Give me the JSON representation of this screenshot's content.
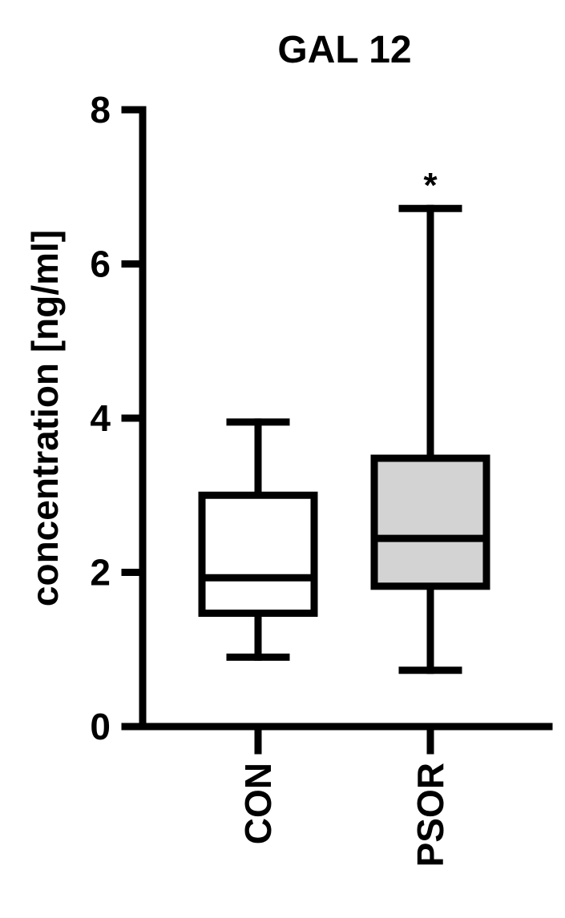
{
  "chart_data": {
    "type": "box",
    "title": "GAL 12",
    "ylabel": "concentration [ng/ml]",
    "xlabel": "",
    "ylim": [
      0,
      8
    ],
    "yticks": [
      0,
      2,
      4,
      6,
      8
    ],
    "categories": [
      "CON",
      "PSOR"
    ],
    "boxes": [
      {
        "category": "CON",
        "min": 0.9,
        "q1": 1.47,
        "median": 1.93,
        "q3": 3.0,
        "max": 3.95,
        "fill": "#ffffff",
        "annotation": ""
      },
      {
        "category": "PSOR",
        "min": 0.73,
        "q1": 1.82,
        "median": 2.44,
        "q3": 3.48,
        "max": 6.72,
        "fill": "#d3d3d3",
        "annotation": "*"
      }
    ],
    "grid": false,
    "legend": "none"
  }
}
